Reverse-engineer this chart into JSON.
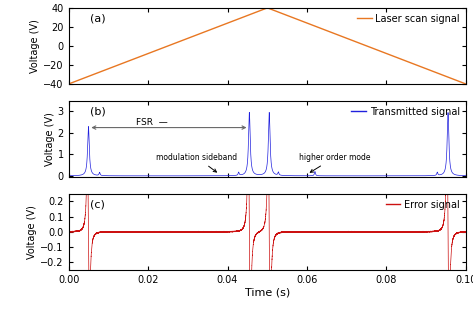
{
  "title_a": "(a)",
  "title_b": "(b)",
  "title_c": "(c)",
  "xlabel": "Time (s)",
  "ylabel": "Voltage (V)",
  "xmin": 0.0,
  "xmax": 0.1,
  "color_a": "#E87722",
  "color_b": "#2020DD",
  "color_c": "#CC1111",
  "legend_a": "Laser scan signal",
  "legend_b": "Transmitted signal",
  "legend_c": "Error signal",
  "ylim_a": [
    -40,
    40
  ],
  "yticks_a": [
    -40,
    -20,
    0,
    20,
    40
  ],
  "ylim_b": [
    -0.05,
    3.5
  ],
  "yticks_b": [
    0,
    1,
    2,
    3
  ],
  "ylim_c": [
    -0.25,
    0.25
  ],
  "yticks_c": [
    -0.2,
    -0.1,
    0.0,
    0.1,
    0.2
  ],
  "xticks": [
    0.0,
    0.02,
    0.04,
    0.06,
    0.08,
    0.1
  ],
  "xticklabels": [
    "0.00",
    "0.02",
    "0.04",
    "0.06",
    "0.08",
    "0.10"
  ]
}
